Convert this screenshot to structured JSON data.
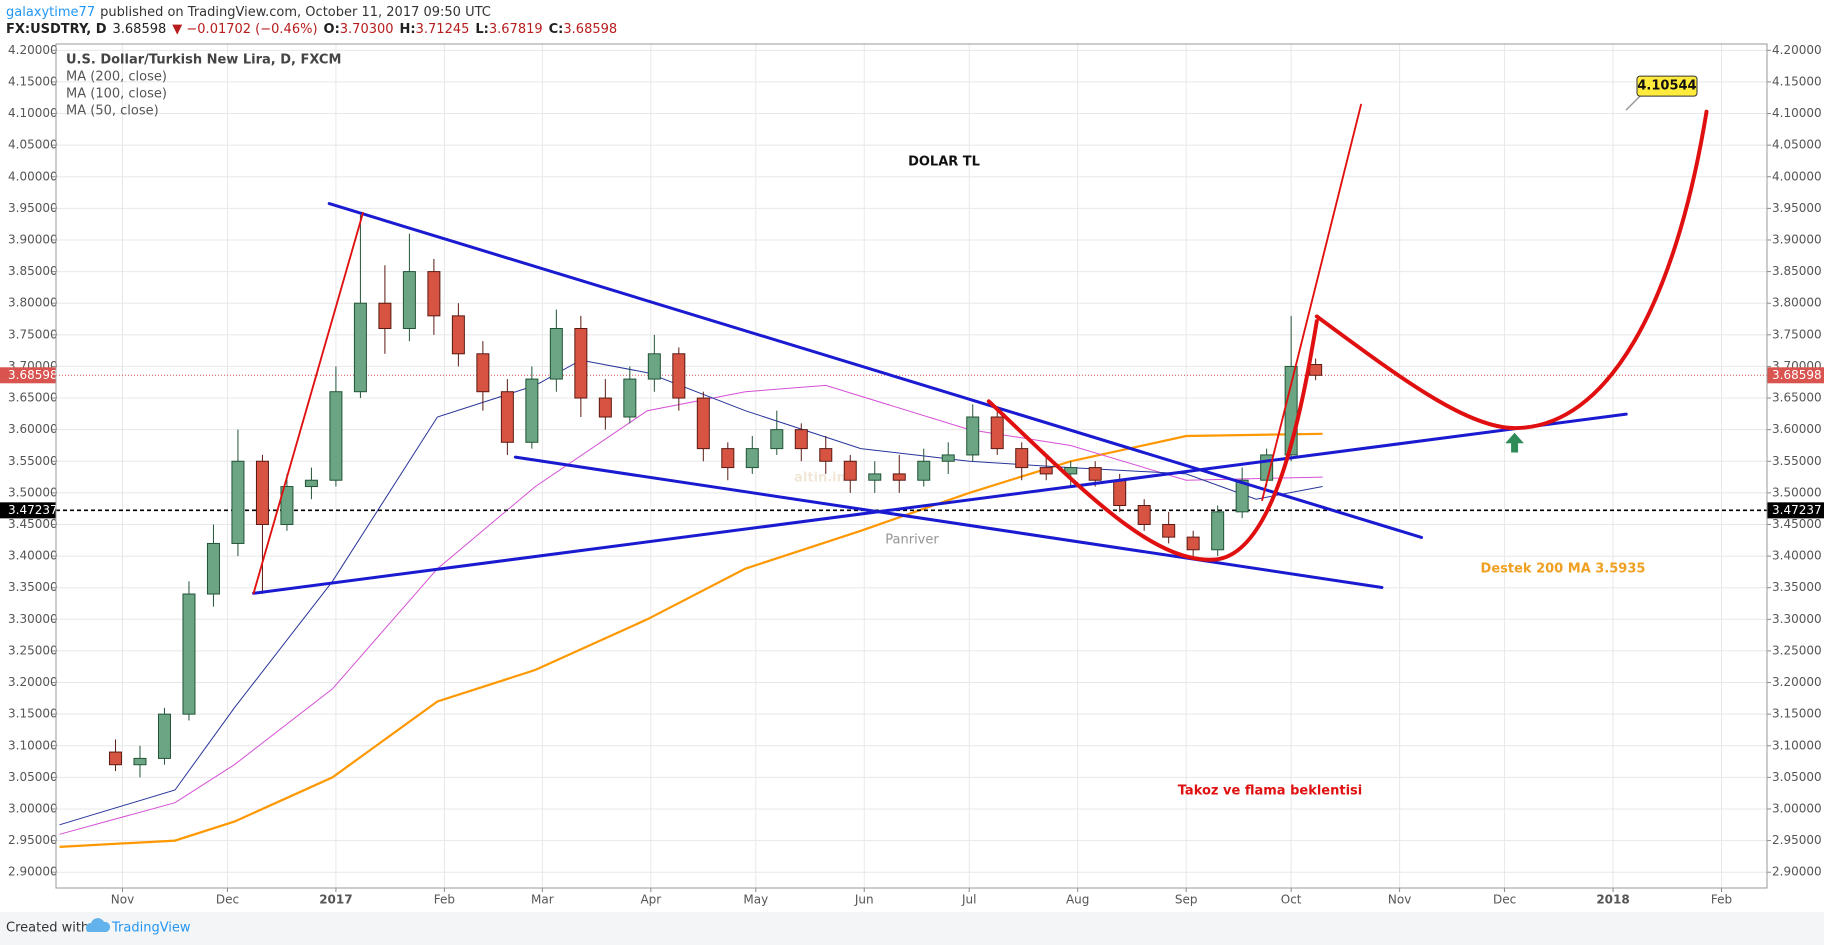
{
  "header": {
    "author": "galaxytime77",
    "published": "published on TradingView.com, October 11, 2017 09:50 UTC",
    "symbol": "FX:USDTRY, D",
    "last": "3.68598",
    "change": "▼ −0.01702 (−0.46%)",
    "ohlc": [
      {
        "label": "O:",
        "value": "3.70300"
      },
      {
        "label": "H:",
        "value": "3.71245"
      },
      {
        "label": "L:",
        "value": "3.67819"
      },
      {
        "label": "C:",
        "value": "3.68598"
      }
    ]
  },
  "chart_data": {
    "type": "candlestick",
    "title": "U.S. Dollar/Turkish New Lira, D, FXCM",
    "up_color": "#6ba583",
    "down_color": "#d75442",
    "grid": true,
    "xlim": [
      -19,
      470
    ],
    "ylim": [
      2.875,
      4.21
    ],
    "xticks": [
      {
        "value": 0,
        "label": "Nov"
      },
      {
        "value": 30,
        "label": "Dec"
      },
      {
        "value": 61,
        "label": "2017"
      },
      {
        "value": 92,
        "label": "Feb"
      },
      {
        "value": 120,
        "label": "Mar"
      },
      {
        "value": 151,
        "label": "Apr"
      },
      {
        "value": 181,
        "label": "May"
      },
      {
        "value": 212,
        "label": "Jun"
      },
      {
        "value": 242,
        "label": "Jul"
      },
      {
        "value": 273,
        "label": "Aug"
      },
      {
        "value": 304,
        "label": "Sep"
      },
      {
        "value": 334,
        "label": "Oct"
      },
      {
        "value": 365,
        "label": "Nov"
      },
      {
        "value": 395,
        "label": "Dec"
      },
      {
        "value": 426,
        "label": "2018"
      },
      {
        "value": 457,
        "label": "Feb"
      }
    ],
    "yticks": [
      {
        "value": 2.9,
        "label": "2.90000"
      },
      {
        "value": 2.95,
        "label": "2.95000"
      },
      {
        "value": 3.0,
        "label": "3.00000"
      },
      {
        "value": 3.05,
        "label": "3.05000"
      },
      {
        "value": 3.1,
        "label": "3.10000"
      },
      {
        "value": 3.15,
        "label": "3.15000"
      },
      {
        "value": 3.2,
        "label": "3.20000"
      },
      {
        "value": 3.25,
        "label": "3.25000"
      },
      {
        "value": 3.3,
        "label": "3.30000"
      },
      {
        "value": 3.35,
        "label": "3.35000"
      },
      {
        "value": 3.4,
        "label": "3.40000"
      },
      {
        "value": 3.45,
        "label": "3.45000"
      },
      {
        "value": 3.5,
        "label": "3.50000"
      },
      {
        "value": 3.55,
        "label": "3.55000"
      },
      {
        "value": 3.6,
        "label": "3.60000"
      },
      {
        "value": 3.65,
        "label": "3.65000"
      },
      {
        "value": 3.7,
        "label": "3.70000"
      },
      {
        "value": 3.75,
        "label": "3.75000"
      },
      {
        "value": 3.8,
        "label": "3.80000"
      },
      {
        "value": 3.85,
        "label": "3.85000"
      },
      {
        "value": 3.9,
        "label": "3.90000"
      },
      {
        "value": 3.95,
        "label": "3.95000"
      },
      {
        "value": 4.0,
        "label": "4.00000"
      },
      {
        "value": 4.05,
        "label": "4.05000"
      },
      {
        "value": 4.1,
        "label": "4.10000"
      },
      {
        "value": 4.15,
        "label": "4.15000"
      },
      {
        "value": 4.2,
        "label": "4.20000"
      }
    ],
    "candles": {
      "x": [
        -2,
        5,
        12,
        19,
        26,
        33,
        40,
        47,
        54,
        61,
        68,
        75,
        82,
        89,
        96,
        103,
        110,
        117,
        124,
        131,
        138,
        145,
        152,
        159,
        166,
        173,
        180,
        187,
        194,
        201,
        208,
        215,
        222,
        229,
        236,
        243,
        250,
        257,
        264,
        271,
        278,
        285,
        292,
        299,
        306,
        313,
        320,
        327,
        334,
        341
      ],
      "open": [
        3.09,
        3.07,
        3.08,
        3.15,
        3.34,
        3.42,
        3.55,
        3.45,
        3.51,
        3.52,
        3.66,
        3.8,
        3.76,
        3.85,
        3.78,
        3.72,
        3.66,
        3.58,
        3.68,
        3.76,
        3.65,
        3.62,
        3.68,
        3.72,
        3.65,
        3.57,
        3.54,
        3.57,
        3.6,
        3.57,
        3.55,
        3.52,
        3.53,
        3.52,
        3.55,
        3.56,
        3.62,
        3.57,
        3.54,
        3.53,
        3.54,
        3.52,
        3.48,
        3.45,
        3.43,
        3.41,
        3.47,
        3.52,
        3.56,
        3.703
      ],
      "high": [
        3.11,
        3.1,
        3.16,
        3.36,
        3.45,
        3.6,
        3.56,
        3.53,
        3.54,
        3.7,
        3.94,
        3.86,
        3.91,
        3.87,
        3.8,
        3.74,
        3.68,
        3.7,
        3.79,
        3.78,
        3.68,
        3.7,
        3.75,
        3.73,
        3.66,
        3.58,
        3.59,
        3.63,
        3.61,
        3.59,
        3.56,
        3.55,
        3.56,
        3.57,
        3.58,
        3.64,
        3.63,
        3.58,
        3.56,
        3.55,
        3.55,
        3.53,
        3.49,
        3.47,
        3.44,
        3.48,
        3.54,
        3.57,
        3.78,
        3.71245
      ],
      "low": [
        3.06,
        3.05,
        3.07,
        3.14,
        3.32,
        3.4,
        3.34,
        3.44,
        3.49,
        3.51,
        3.65,
        3.72,
        3.74,
        3.75,
        3.7,
        3.63,
        3.56,
        3.57,
        3.66,
        3.62,
        3.6,
        3.61,
        3.66,
        3.63,
        3.55,
        3.52,
        3.53,
        3.56,
        3.55,
        3.53,
        3.5,
        3.5,
        3.5,
        3.51,
        3.53,
        3.55,
        3.56,
        3.52,
        3.52,
        3.51,
        3.51,
        3.47,
        3.44,
        3.42,
        3.4,
        3.4,
        3.46,
        3.51,
        3.55,
        3.67819
      ],
      "close": [
        3.07,
        3.08,
        3.15,
        3.34,
        3.42,
        3.55,
        3.45,
        3.51,
        3.52,
        3.66,
        3.8,
        3.76,
        3.85,
        3.78,
        3.72,
        3.66,
        3.58,
        3.68,
        3.76,
        3.65,
        3.62,
        3.68,
        3.72,
        3.65,
        3.57,
        3.54,
        3.57,
        3.6,
        3.57,
        3.55,
        3.52,
        3.53,
        3.52,
        3.55,
        3.56,
        3.62,
        3.57,
        3.54,
        3.53,
        3.54,
        3.52,
        3.48,
        3.45,
        3.43,
        3.41,
        3.47,
        3.52,
        3.56,
        3.7,
        3.68598
      ]
    },
    "series": [
      {
        "name": "MA (200, close)",
        "color": "#ff9800",
        "x": [
          -18,
          15,
          32,
          60,
          90,
          118,
          150,
          178,
          211,
          242,
          271,
          304,
          343
        ],
        "values": [
          2.94,
          2.95,
          2.98,
          3.05,
          3.17,
          3.22,
          3.3,
          3.38,
          3.44,
          3.5,
          3.55,
          3.59,
          3.5935
        ]
      },
      {
        "name": "MA (100, close)",
        "color": "#d64fd6",
        "x": [
          -18,
          15,
          32,
          60,
          90,
          118,
          150,
          178,
          201,
          242,
          271,
          304,
          343
        ],
        "values": [
          2.96,
          3.01,
          3.07,
          3.19,
          3.38,
          3.51,
          3.63,
          3.66,
          3.67,
          3.6,
          3.575,
          3.52,
          3.525
        ]
      },
      {
        "name": "MA (50, close)",
        "color": "#28349a",
        "x": [
          -18,
          15,
          32,
          60,
          90,
          118,
          131,
          150,
          178,
          211,
          242,
          271,
          304,
          324,
          343
        ],
        "values": [
          2.975,
          3.03,
          3.16,
          3.36,
          3.62,
          3.67,
          3.71,
          3.69,
          3.63,
          3.57,
          3.55,
          3.54,
          3.53,
          3.49,
          3.51
        ]
      }
    ],
    "price_lines": [
      {
        "value": 3.68598,
        "color": "#d9534f"
      },
      {
        "value": 3.47237,
        "color": "#000000"
      }
    ],
    "callout_value": 4.10544,
    "annotations": [
      "DOLAR TL",
      "Destek  200 MA  3.5935",
      "Takoz ve flama beklentisi"
    ],
    "watermark": "Panriver",
    "watermark_logo": "altin.in"
  },
  "footer": {
    "created": "Created with",
    "brand": "TradingView"
  }
}
